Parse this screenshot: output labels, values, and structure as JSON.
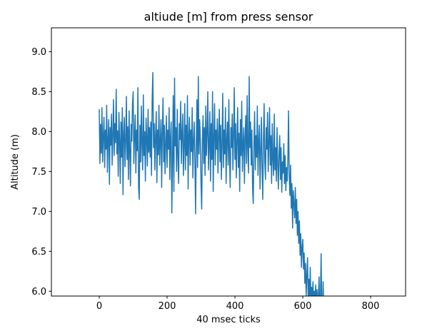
{
  "figure": {
    "background": "#ffffff",
    "spine_color": "#000000",
    "text_color": "#000000"
  },
  "chart_data": {
    "type": "line",
    "title": "altiude [m] from press sensor",
    "xlabel": "40 msec ticks",
    "ylabel": "Altitude (m)",
    "line_color": "#1f77b4",
    "grid": false,
    "legend": null,
    "xlim": [
      -141,
      903
    ],
    "ylim": [
      5.94,
      9.3
    ],
    "xticks": [
      0,
      200,
      400,
      600,
      800
    ],
    "xtick_labels": [
      "0",
      "200",
      "400",
      "600",
      "800"
    ],
    "yticks": [
      6.0,
      6.5,
      7.0,
      7.5,
      8.0,
      8.5,
      9.0
    ],
    "ytick_labels": [
      "6.0",
      "6.5",
      "7.0",
      "7.5",
      "8.0",
      "8.5",
      "9.0"
    ],
    "x_start": 0,
    "x_step": 2,
    "values": [
      8.28,
      7.6,
      8.09,
      7.73,
      8.3,
      7.62,
      7.95,
      8.18,
      7.55,
      8.02,
      7.78,
      8.33,
      7.49,
      7.9,
      8.15,
      7.34,
      8.05,
      7.83,
      8.22,
      7.58,
      7.96,
      8.4,
      7.7,
      8.1,
      7.86,
      8.53,
      7.72,
      8.01,
      7.44,
      8.24,
      7.9,
      7.35,
      8.12,
      7.68,
      8.3,
      7.21,
      7.98,
      8.18,
      7.56,
      7.87,
      8.44,
      7.65,
      8.06,
      7.4,
      8.26,
      7.75,
      7.32,
      8.09,
      7.88,
      8.35,
      8.5,
      7.6,
      7.94,
      8.21,
      7.48,
      8.02,
      7.76,
      8.55,
      7.3,
      7.15,
      8.08,
      7.62,
      8.32,
      7.85,
      7.52,
      8.46,
      7.7,
      8.0,
      7.38,
      8.17,
      7.92,
      7.57,
      8.28,
      7.74,
      8.05,
      7.68,
      8.12,
      7.45,
      8.4,
      8.74,
      7.8,
      8.1,
      7.52,
      7.95,
      8.25,
      7.36,
      8.02,
      7.71,
      8.33,
      7.58,
      7.88,
      8.15,
      7.3,
      7.99,
      8.42,
      7.62,
      8.08,
      7.47,
      7.85,
      8.2,
      7.55,
      8.02,
      7.78,
      8.3,
      7.4,
      7.92,
      8.12,
      6.98,
      7.65,
      8.45,
      7.25,
      8.67,
      7.82,
      8.05,
      7.5,
      8.28,
      7.68,
      7.35,
      8.1,
      7.9,
      8.38,
      7.6,
      7.98,
      8.22,
      7.45,
      7.8,
      8.35,
      7.52,
      8.08,
      7.7,
      8.45,
      7.28,
      7.95,
      8.18,
      7.58,
      8.02,
      7.75,
      8.3,
      7.42,
      7.88,
      8.12,
      7.62,
      6.97,
      7.85,
      8.4,
      7.55,
      8.69,
      7.72,
      8.15,
      7.9,
      7.35,
      7.03,
      7.88,
      8.2,
      7.6,
      8.05,
      7.45,
      8.32,
      7.7,
      7.98,
      8.5,
      7.52,
      7.82,
      8.25,
      7.38,
      8.1,
      7.65,
      8.5,
      7.25,
      7.92,
      8.35,
      7.58,
      8.02,
      7.78,
      8.16,
      7.48,
      7.95,
      8.28,
      7.62,
      8.08,
      7.4,
      7.85,
      8.48,
      7.55,
      8.02,
      7.72,
      8.3,
      7.35,
      7.9,
      8.12,
      7.58,
      8.4,
      7.68,
      7.3,
      8.05,
      7.8,
      8.22,
      7.52,
      7.95,
      8.55,
      7.65,
      8.1,
      7.42,
      7.88,
      8.3,
      7.55,
      7.98,
      7.25,
      8.15,
      7.7,
      8.38,
      7.5,
      7.85,
      8.05,
      7.35,
      7.92,
      8.2,
      7.6,
      8.45,
      7.75,
      7.48,
      8.69,
      7.8,
      8.12,
      7.58,
      8.02,
      7.3,
      7.1,
      7.85,
      8.25,
      7.52,
      7.95,
      7.68,
      8.32,
      7.45,
      7.88,
      8.08,
      7.28,
      7.75,
      8.18,
      7.55,
      7.15,
      7.9,
      8.35,
      7.62,
      7.4,
      8.05,
      7.78,
      8.24,
      7.5,
      7.85,
      8.3,
      7.58,
      7.95,
      7.35,
      8.1,
      7.65,
      7.45,
      8.22,
      7.52,
      7.8,
      7.38,
      8.05,
      7.6,
      7.28,
      7.72,
      7.95,
      7.4,
      7.8,
      7.24,
      7.62,
      7.48,
      7.85,
      7.35,
      7.7,
      7.26,
      7.55,
      7.38,
      7.65,
      8.26,
      7.45,
      7.2,
      7.58,
      7.04,
      7.35,
      6.79,
      7.26,
      7.1,
      6.92,
      7.3,
      6.85,
      7.15,
      6.7,
      7.0,
      6.6,
      6.88,
      6.45,
      6.72,
      6.3,
      6.55,
      6.65,
      6.28,
      6.48,
      6.1,
      6.35,
      5.95,
      6.2,
      6.42,
      5.88,
      6.15,
      5.92,
      6.3,
      5.85,
      6.05,
      5.9,
      6.12,
      5.8,
      6.0,
      5.86,
      6.08,
      5.78,
      6.02,
      5.75,
      5.95,
      6.18,
      5.7,
      5.88,
      6.47,
      5.82,
      5.68,
      6.12,
      5.72,
      5.6
    ]
  }
}
